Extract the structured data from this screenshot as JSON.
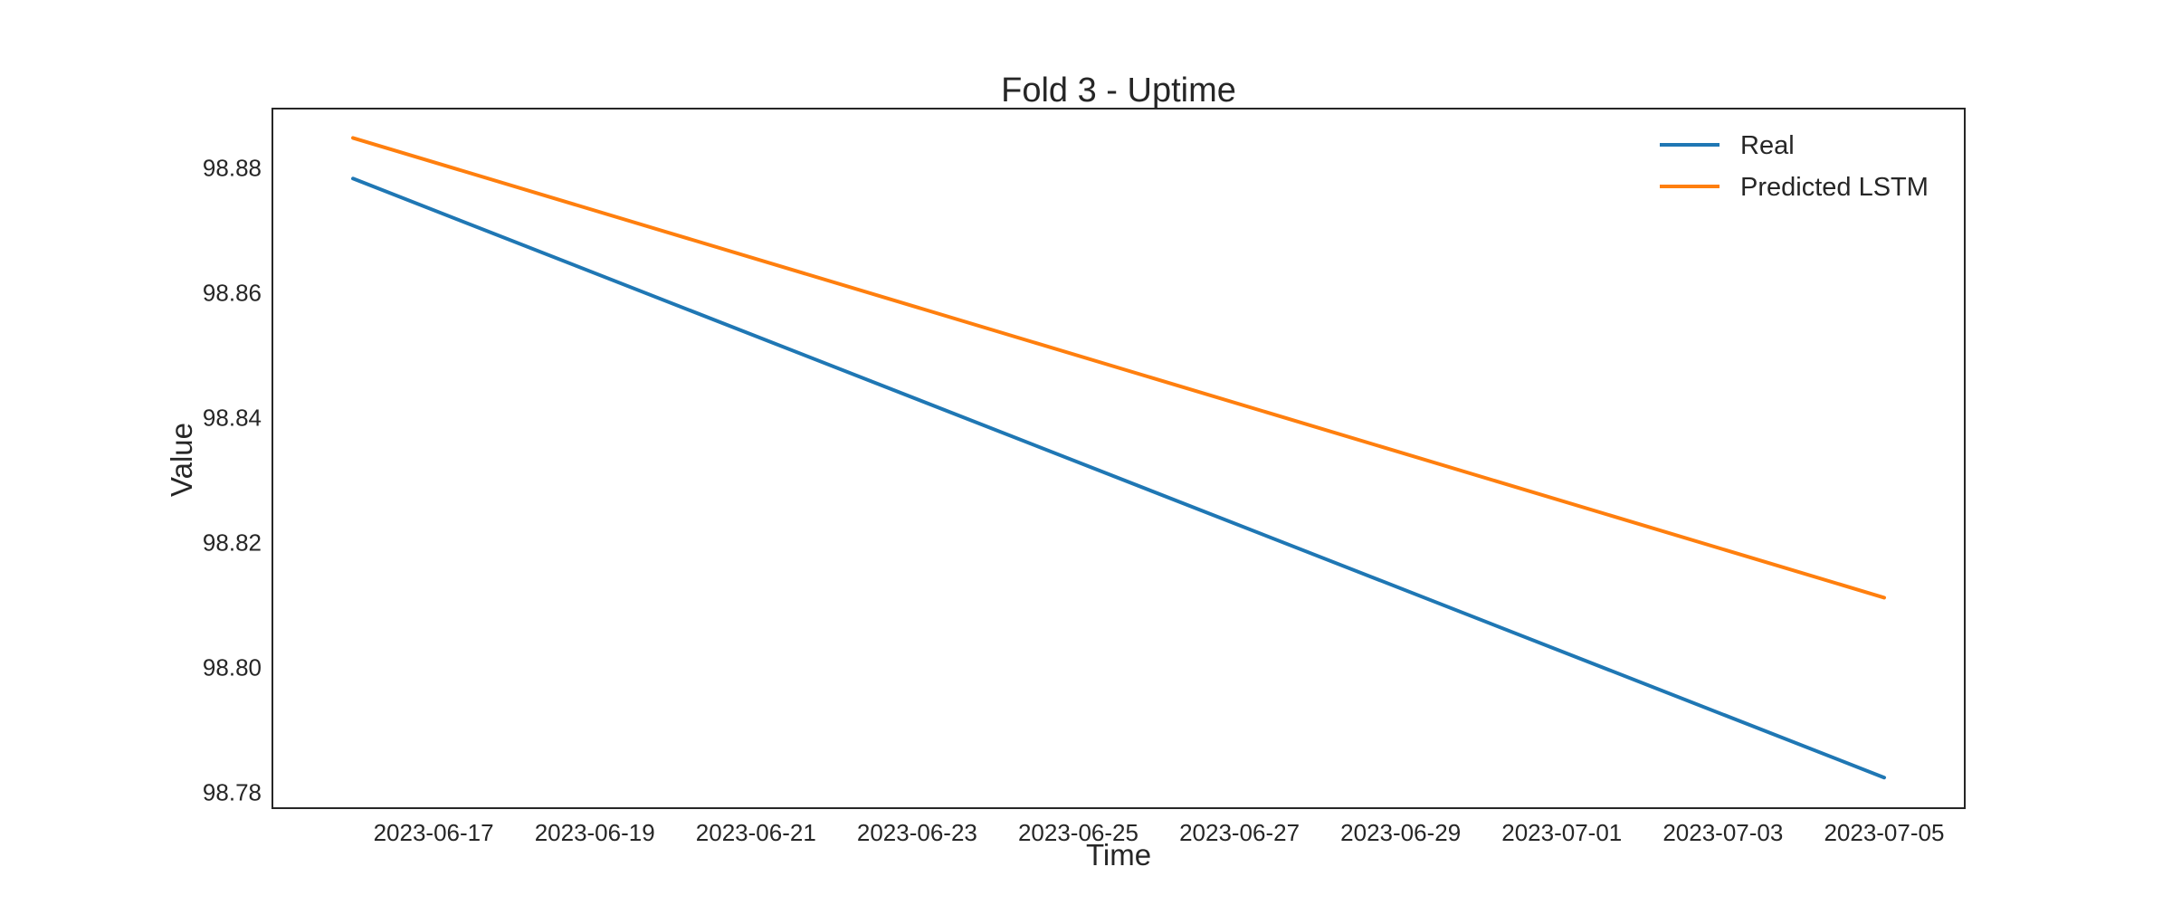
{
  "chart_data": {
    "type": "line",
    "title": "Fold 3 - Uptime",
    "xlabel": "Time",
    "ylabel": "Value",
    "x": [
      "2023-06-16",
      "2023-07-05"
    ],
    "xlim": [
      "2023-06-15",
      "2023-07-06"
    ],
    "ylim": [
      98.7775,
      98.8895
    ],
    "x_ticks": [
      "2023-06-17",
      "2023-06-19",
      "2023-06-21",
      "2023-06-23",
      "2023-06-25",
      "2023-06-27",
      "2023-06-29",
      "2023-07-01",
      "2023-07-03",
      "2023-07-05"
    ],
    "y_ticks": [
      "98.78",
      "98.80",
      "98.82",
      "98.84",
      "98.86",
      "98.88"
    ],
    "grid": false,
    "legend_position": "top-right",
    "series": [
      {
        "name": "Real",
        "color": "#1f77b4",
        "values": [
          98.8783,
          98.7824
        ]
      },
      {
        "name": "Predicted LSTM",
        "color": "#ff7f0e",
        "values": [
          98.8848,
          98.8112
        ]
      }
    ]
  }
}
